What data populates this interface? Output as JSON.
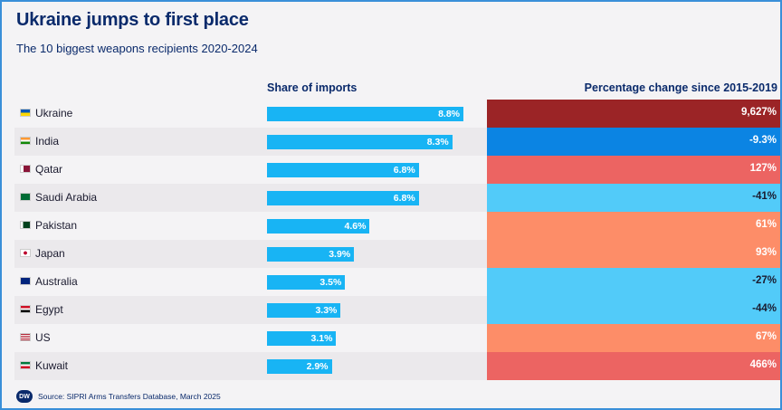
{
  "title": "Ukraine jumps to first place",
  "subtitle": "The 10 biggest weapons recipients 2020-2024",
  "source": "Source: SIPRI Arms Transfers Database, March 2025",
  "logo_text": "DW",
  "chart_data": {
    "type": "bar",
    "title": "Ukraine jumps to first place",
    "subtitle": "The 10 biggest weapons recipients 2020-2024",
    "columns": [
      "Share of imports",
      "Percentage change since 2015-2019"
    ],
    "categories": [
      "Ukraine",
      "India",
      "Qatar",
      "Saudi Arabia",
      "Pakistan",
      "Japan",
      "Australia",
      "Egypt",
      "US",
      "Kuwait"
    ],
    "share": [
      8.8,
      8.3,
      6.8,
      6.8,
      4.6,
      3.9,
      3.5,
      3.3,
      3.1,
      2.9
    ],
    "share_labels": [
      "8.8%",
      "8.3%",
      "6.8%",
      "6.8%",
      "4.6%",
      "3.9%",
      "3.5%",
      "3.3%",
      "3.1%",
      "2.9%"
    ],
    "change": [
      9627,
      -9.3,
      127,
      -41,
      61,
      93,
      -27,
      -44,
      67,
      466
    ],
    "change_labels": [
      "9,627%",
      "-9.3%",
      "127%",
      "-41%",
      "61%",
      "93%",
      "-27%",
      "-44%",
      "67%",
      "466%"
    ],
    "change_colors": [
      "#9b2426",
      "#0b84e3",
      "#ec6462",
      "#52cbf9",
      "#fd8d68",
      "#fd8d68",
      "#52cbf9",
      "#52cbf9",
      "#fd8d68",
      "#ec6462"
    ],
    "change_text_colors": [
      "#ffffff",
      "#ffffff",
      "#ffffff",
      "#1a1a2e",
      "#ffffff",
      "#ffffff",
      "#1a1a2e",
      "#1a1a2e",
      "#ffffff",
      "#ffffff"
    ],
    "bar_color": "#18b4f4",
    "share_max": 8.8,
    "flags": [
      "flag-ua-icon",
      "flag-in-icon",
      "flag-qa-icon",
      "flag-sa-icon",
      "flag-pk-icon",
      "flag-jp-icon",
      "flag-au-icon",
      "flag-eg-icon",
      "flag-us-icon",
      "flag-kw-icon"
    ]
  }
}
